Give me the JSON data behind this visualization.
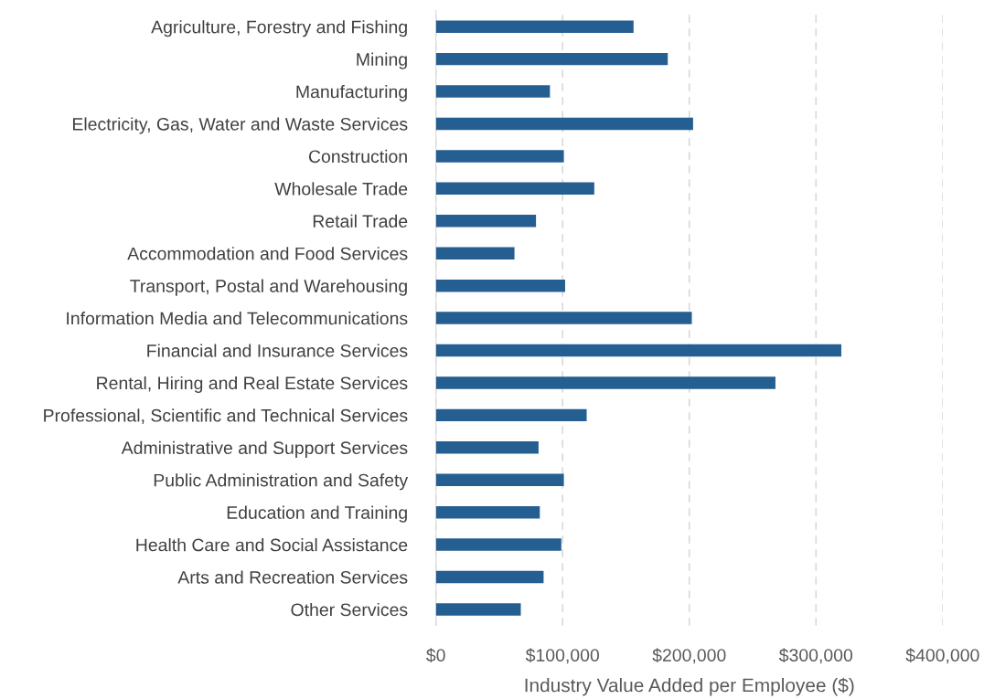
{
  "chart_data": {
    "type": "bar",
    "orientation": "horizontal",
    "xlabel": "Industry Value Added per Employee ($)",
    "categories": [
      "Agriculture, Forestry and Fishing",
      "Mining",
      "Manufacturing",
      "Electricity, Gas, Water and Waste Services",
      "Construction",
      "Wholesale Trade",
      "Retail Trade",
      "Accommodation and Food Services",
      "Transport, Postal and Warehousing",
      "Information Media and Telecommunications",
      "Financial and Insurance Services",
      "Rental, Hiring and Real Estate Services",
      "Professional, Scientific and Technical Services",
      "Administrative and Support Services",
      "Public Administration and Safety",
      "Education and Training",
      "Health Care and Social Assistance",
      "Arts and Recreation Services",
      "Other Services"
    ],
    "values": [
      156000,
      183000,
      90000,
      203000,
      101000,
      125000,
      79000,
      62000,
      102000,
      202000,
      320000,
      268000,
      119000,
      81000,
      101000,
      82000,
      99000,
      85000,
      67000
    ],
    "color": "#255e91",
    "xlim": [
      0,
      400000
    ],
    "xticks": [
      {
        "value": 0,
        "label": "$0"
      },
      {
        "value": 100000,
        "label": "$100,000"
      },
      {
        "value": 200000,
        "label": "$200,000"
      },
      {
        "value": 300000,
        "label": "$300,000"
      },
      {
        "value": 400000,
        "label": "$400,000"
      }
    ],
    "grid": "x"
  }
}
